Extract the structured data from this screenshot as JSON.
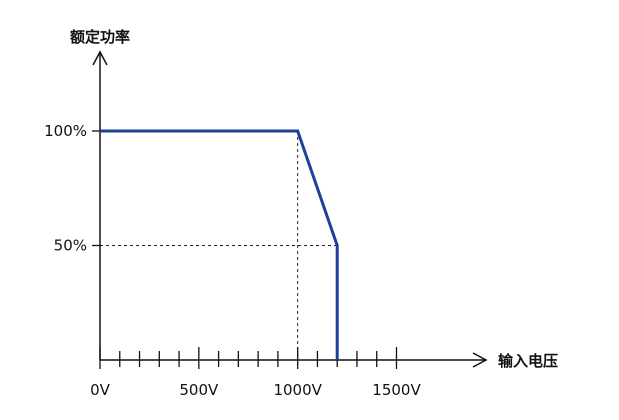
{
  "chart_data": {
    "type": "line",
    "title": "",
    "xlabel": "输入电压",
    "ylabel": "额定功率",
    "xlim": [
      0,
      1500
    ],
    "ylim": [
      0,
      100
    ],
    "x_tick_labels": [
      {
        "value": 0,
        "label": "0V"
      },
      {
        "value": 500,
        "label": "500V"
      },
      {
        "value": 1000,
        "label": "1000V"
      },
      {
        "value": 1500,
        "label": "1500V"
      }
    ],
    "x_minor_tick_step": 100,
    "y_tick_labels": [
      {
        "value": 50,
        "label": "50%"
      },
      {
        "value": 100,
        "label": "100%"
      }
    ],
    "grid": false,
    "guide_lines": [
      {
        "x": 1000,
        "y": 100
      },
      {
        "x": 1200,
        "y": 50
      }
    ],
    "series": [
      {
        "x": [
          0,
          1000,
          1200,
          1200
        ],
        "y": [
          100,
          100,
          50,
          0
        ],
        "color": "#1f3f9c"
      }
    ]
  }
}
